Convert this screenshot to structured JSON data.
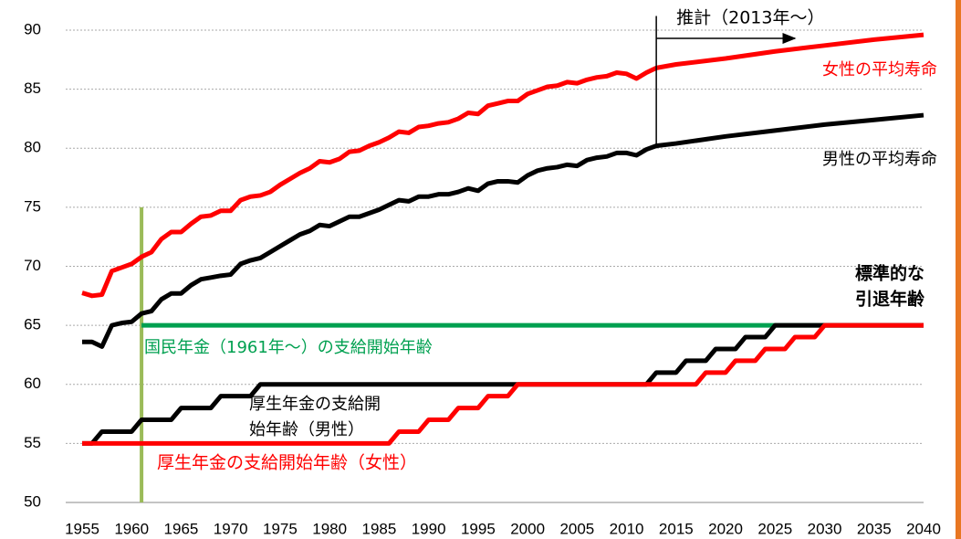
{
  "chart_data": {
    "type": "line",
    "xlim": [
      1955,
      2040
    ],
    "xticks": [
      1955,
      1960,
      1965,
      1970,
      1975,
      1980,
      1985,
      1990,
      1995,
      2000,
      2005,
      2010,
      2015,
      2020,
      2025,
      2030,
      2035,
      2040
    ],
    "ylim": [
      50,
      90
    ],
    "yticks": [
      50,
      55,
      60,
      65,
      70,
      75,
      80,
      85,
      90
    ],
    "grid": true,
    "series": [
      {
        "color": "#ff0000",
        "x": [
          1955,
          1956,
          1957,
          1958,
          1959,
          1960,
          1961,
          1962,
          1963,
          1964,
          1965,
          1966,
          1967,
          1968,
          1969,
          1970,
          1971,
          1972,
          1973,
          1974,
          1975,
          1976,
          1977,
          1978,
          1979,
          1980,
          1981,
          1982,
          1983,
          1984,
          1985,
          1986,
          1987,
          1988,
          1989,
          1990,
          1991,
          1992,
          1993,
          1994,
          1995,
          1996,
          1997,
          1998,
          1999,
          2000,
          2001,
          2002,
          2003,
          2004,
          2005,
          2006,
          2007,
          2008,
          2009,
          2010,
          2011,
          2012,
          2013,
          2015,
          2020,
          2025,
          2030,
          2035,
          2040
        ],
        "values": [
          67.75,
          67.5,
          67.6,
          69.6,
          69.9,
          70.2,
          70.8,
          71.2,
          72.3,
          72.9,
          72.9,
          73.6,
          74.2,
          74.3,
          74.7,
          74.7,
          75.6,
          75.9,
          76.0,
          76.3,
          76.9,
          77.4,
          77.9,
          78.3,
          78.9,
          78.8,
          79.1,
          79.7,
          79.8,
          80.2,
          80.5,
          80.9,
          81.4,
          81.3,
          81.8,
          81.9,
          82.1,
          82.2,
          82.5,
          83.0,
          82.9,
          83.6,
          83.8,
          84.0,
          84.0,
          84.6,
          84.9,
          85.2,
          85.3,
          85.6,
          85.5,
          85.8,
          86.0,
          86.1,
          86.4,
          86.3,
          85.9,
          86.4,
          86.8,
          87.1,
          87.6,
          88.2,
          88.7,
          89.2,
          89.6
        ]
      },
      {
        "color": "#000000",
        "x": [
          1955,
          1956,
          1957,
          1958,
          1959,
          1960,
          1961,
          1962,
          1963,
          1964,
          1965,
          1966,
          1967,
          1968,
          1969,
          1970,
          1971,
          1972,
          1973,
          1974,
          1975,
          1976,
          1977,
          1978,
          1979,
          1980,
          1981,
          1982,
          1983,
          1984,
          1985,
          1986,
          1987,
          1988,
          1989,
          1990,
          1991,
          1992,
          1993,
          1994,
          1995,
          1996,
          1997,
          1998,
          1999,
          2000,
          2001,
          2002,
          2003,
          2004,
          2005,
          2006,
          2007,
          2008,
          2009,
          2010,
          2011,
          2012,
          2013,
          2015,
          2020,
          2025,
          2030,
          2035,
          2040
        ],
        "values": [
          63.6,
          63.6,
          63.2,
          65.0,
          65.2,
          65.3,
          66.0,
          66.2,
          67.2,
          67.7,
          67.7,
          68.4,
          68.9,
          69.05,
          69.2,
          69.3,
          70.2,
          70.5,
          70.7,
          71.2,
          71.7,
          72.2,
          72.7,
          73.0,
          73.5,
          73.4,
          73.8,
          74.2,
          74.2,
          74.5,
          74.8,
          75.2,
          75.6,
          75.5,
          75.9,
          75.9,
          76.1,
          76.1,
          76.3,
          76.6,
          76.4,
          77.0,
          77.2,
          77.2,
          77.1,
          77.7,
          78.1,
          78.3,
          78.4,
          78.6,
          78.5,
          79.0,
          79.2,
          79.3,
          79.6,
          79.6,
          79.4,
          79.9,
          80.2,
          80.4,
          81.0,
          81.5,
          82.0,
          82.4,
          82.8
        ]
      },
      {
        "color": "#00a050",
        "x": [
          1961,
          2040
        ],
        "values": [
          65,
          65
        ]
      },
      {
        "color": "#000000",
        "x": [
          1955,
          1956,
          1957,
          1960,
          1961,
          1964,
          1965,
          1968,
          1969,
          1972,
          1973,
          2012,
          2013,
          2015,
          2016,
          2018,
          2019,
          2021,
          2022,
          2024,
          2025,
          2040
        ],
        "values": [
          55,
          55,
          56,
          56,
          57,
          57,
          58,
          58,
          59,
          59,
          60,
          60,
          61,
          61,
          62,
          62,
          63,
          63,
          64,
          64,
          65,
          65
        ]
      },
      {
        "color": "#ff0000",
        "x": [
          1955,
          1986,
          1987,
          1989,
          1990,
          1992,
          1993,
          1995,
          1996,
          1998,
          1999,
          2017,
          2018,
          2020,
          2021,
          2023,
          2024,
          2026,
          2027,
          2029,
          2030,
          2040
        ],
        "values": [
          55,
          55,
          56,
          56,
          57,
          57,
          58,
          58,
          59,
          59,
          60,
          60,
          61,
          61,
          62,
          62,
          63,
          63,
          64,
          64,
          65,
          65
        ]
      }
    ],
    "reference_line": {
      "x": 1961,
      "y": [
        50,
        75
      ],
      "color": "#9bbb59"
    },
    "projection": {
      "x": 2013,
      "y": [
        80,
        91.2
      ],
      "arrow_to": 2027,
      "arrow_y": 89.3,
      "label": "推計（2013年～）"
    },
    "annotations": [
      {
        "lines": [
          "女性の平均寿命"
        ],
        "color": "#ff0000"
      },
      {
        "lines": [
          "男性の平均寿命"
        ],
        "color": "#000000"
      },
      {
        "lines": [
          "標準的な",
          "引退年齢"
        ],
        "color": "#000000"
      },
      {
        "lines": [
          "国民年金（1961年～）の支給開始年齢"
        ],
        "color": "#00a050"
      },
      {
        "lines": [
          "厚生年金の支給開",
          "始年齢（男性）"
        ],
        "color": "#000000"
      },
      {
        "lines": [
          "厚生年金の支給開始年齢（女性）"
        ],
        "color": "#ff0000"
      }
    ]
  }
}
